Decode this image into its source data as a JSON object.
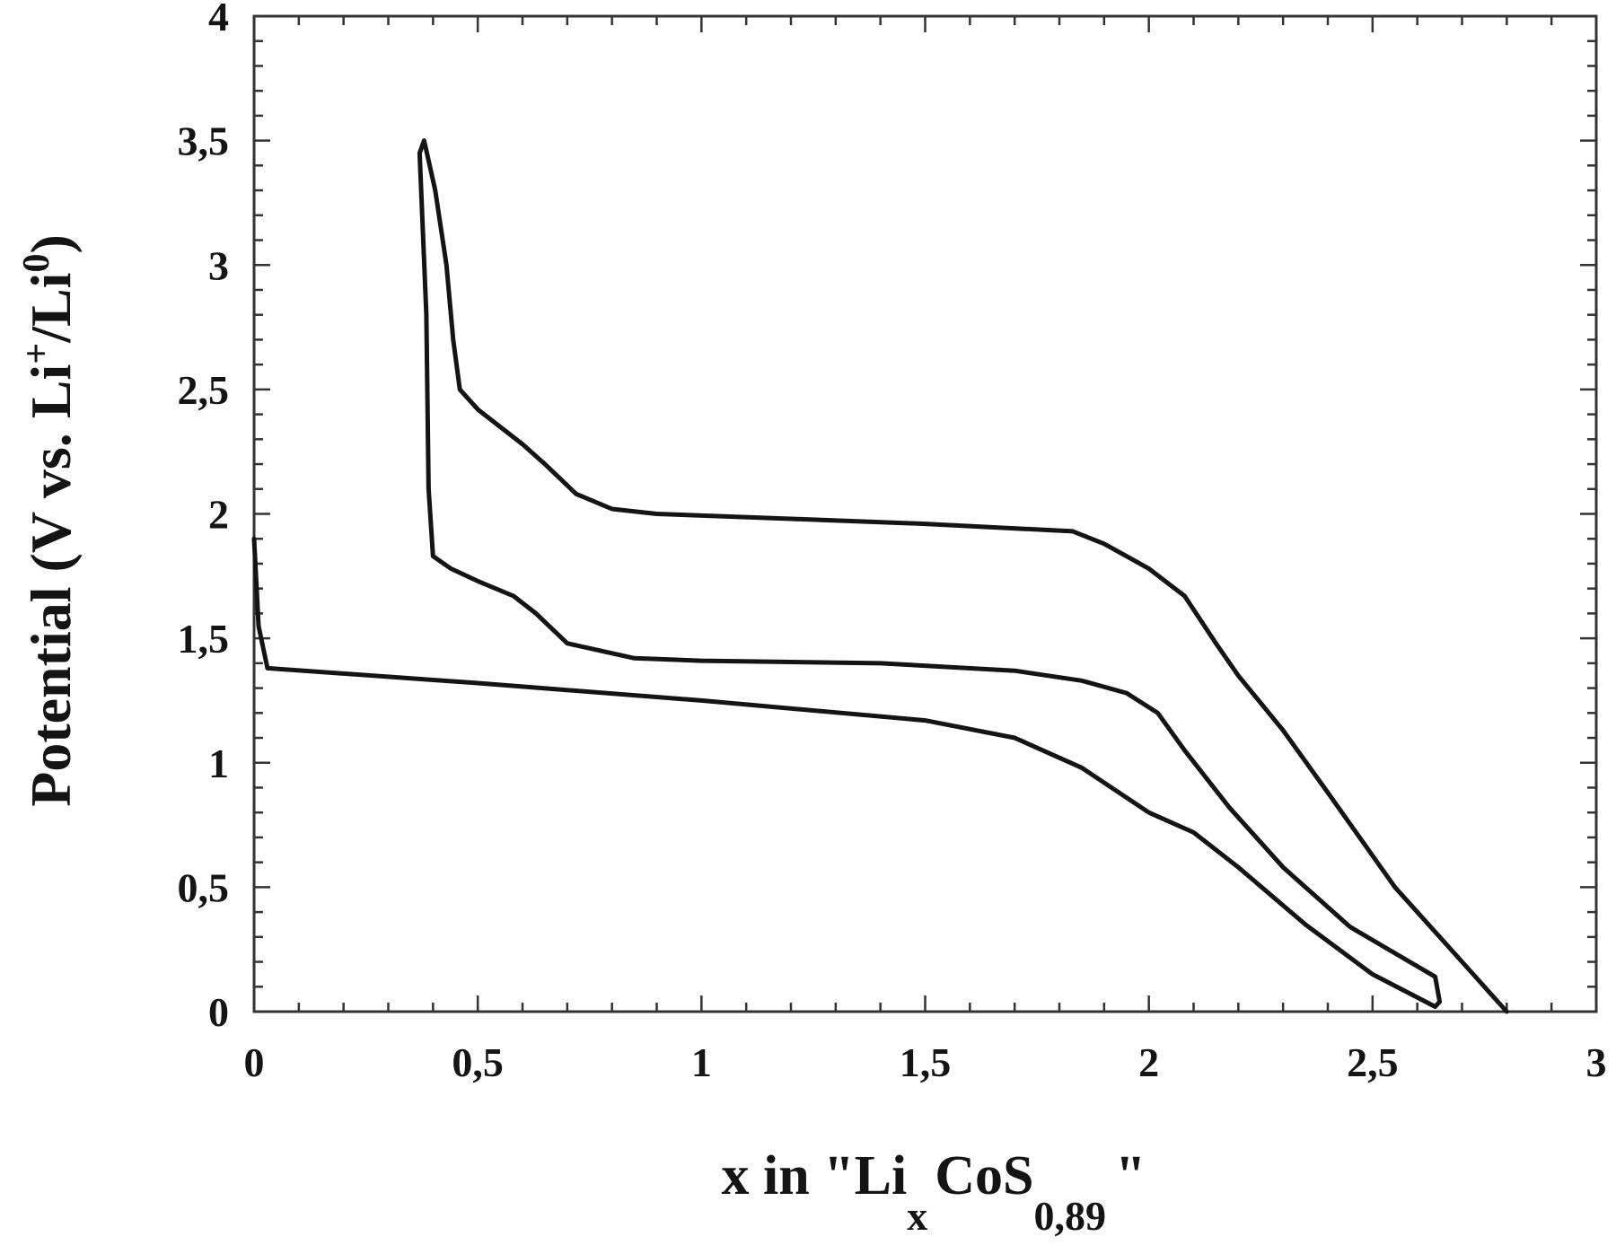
{
  "chart_data": {
    "type": "line",
    "title": "",
    "xlabel": {
      "main": "x in \"Li",
      "sub_x": "x",
      "middle": "CoS",
      "sub_formula": "0,89",
      "end": "\""
    },
    "ylabel": {
      "main": "Potential (V vs. Li",
      "sup_plus": "+",
      "middle": "/Li",
      "sup_zero": "0",
      "end": ")"
    },
    "xlim": [
      0,
      3
    ],
    "ylim": [
      0,
      4
    ],
    "x_ticks": [
      {
        "value": 0,
        "label": "0"
      },
      {
        "value": 0.5,
        "label": "0,5"
      },
      {
        "value": 1,
        "label": "1"
      },
      {
        "value": 1.5,
        "label": "1,5"
      },
      {
        "value": 2,
        "label": "2"
      },
      {
        "value": 2.5,
        "label": "2,5"
      },
      {
        "value": 3,
        "label": "3"
      }
    ],
    "y_ticks": [
      {
        "value": 0,
        "label": "0"
      },
      {
        "value": 0.5,
        "label": "0,5"
      },
      {
        "value": 1,
        "label": "1"
      },
      {
        "value": 1.5,
        "label": "1,5"
      },
      {
        "value": 2,
        "label": "2"
      },
      {
        "value": 2.5,
        "label": "2,5"
      },
      {
        "value": 3,
        "label": "3"
      },
      {
        "value": 3.5,
        "label": "3,5"
      },
      {
        "value": 4,
        "label": "4"
      }
    ],
    "minor_x_step": 0.1,
    "minor_y_step": 0.1,
    "grid": false,
    "legend": "none",
    "line_color": "#141414",
    "series": [
      {
        "points": [
          [
            0.0,
            1.9
          ],
          [
            0.01,
            1.55
          ],
          [
            0.03,
            1.38
          ],
          [
            0.5,
            1.32
          ],
          [
            1.0,
            1.25
          ],
          [
            1.5,
            1.17
          ],
          [
            1.7,
            1.1
          ],
          [
            1.85,
            0.98
          ],
          [
            2.0,
            0.8
          ],
          [
            2.1,
            0.72
          ],
          [
            2.2,
            0.58
          ],
          [
            2.35,
            0.35
          ],
          [
            2.5,
            0.15
          ],
          [
            2.64,
            0.02
          ],
          [
            2.65,
            0.04
          ],
          [
            2.64,
            0.14
          ],
          [
            2.45,
            0.34
          ],
          [
            2.3,
            0.58
          ],
          [
            2.18,
            0.82
          ],
          [
            2.08,
            1.05
          ],
          [
            2.02,
            1.2
          ],
          [
            1.95,
            1.28
          ],
          [
            1.85,
            1.33
          ],
          [
            1.7,
            1.37
          ],
          [
            1.4,
            1.4
          ],
          [
            1.0,
            1.41
          ],
          [
            0.85,
            1.42
          ],
          [
            0.7,
            1.48
          ],
          [
            0.63,
            1.6
          ],
          [
            0.58,
            1.67
          ],
          [
            0.5,
            1.73
          ],
          [
            0.44,
            1.78
          ],
          [
            0.4,
            1.83
          ],
          [
            0.39,
            2.1
          ],
          [
            0.385,
            2.8
          ],
          [
            0.37,
            3.45
          ],
          [
            0.38,
            3.5
          ],
          [
            0.405,
            3.3
          ],
          [
            0.43,
            3.0
          ],
          [
            0.445,
            2.7
          ],
          [
            0.46,
            2.5
          ],
          [
            0.5,
            2.42
          ],
          [
            0.55,
            2.35
          ],
          [
            0.6,
            2.28
          ],
          [
            0.65,
            2.2
          ],
          [
            0.72,
            2.08
          ],
          [
            0.8,
            2.02
          ],
          [
            0.9,
            2.0
          ],
          [
            1.2,
            1.98
          ],
          [
            1.5,
            1.96
          ],
          [
            1.83,
            1.93
          ],
          [
            1.9,
            1.88
          ],
          [
            2.0,
            1.78
          ],
          [
            2.08,
            1.67
          ],
          [
            2.15,
            1.48
          ],
          [
            2.2,
            1.35
          ],
          [
            2.3,
            1.13
          ],
          [
            2.4,
            0.88
          ],
          [
            2.55,
            0.5
          ],
          [
            2.7,
            0.2
          ],
          [
            2.8,
            0.0
          ]
        ]
      }
    ]
  }
}
